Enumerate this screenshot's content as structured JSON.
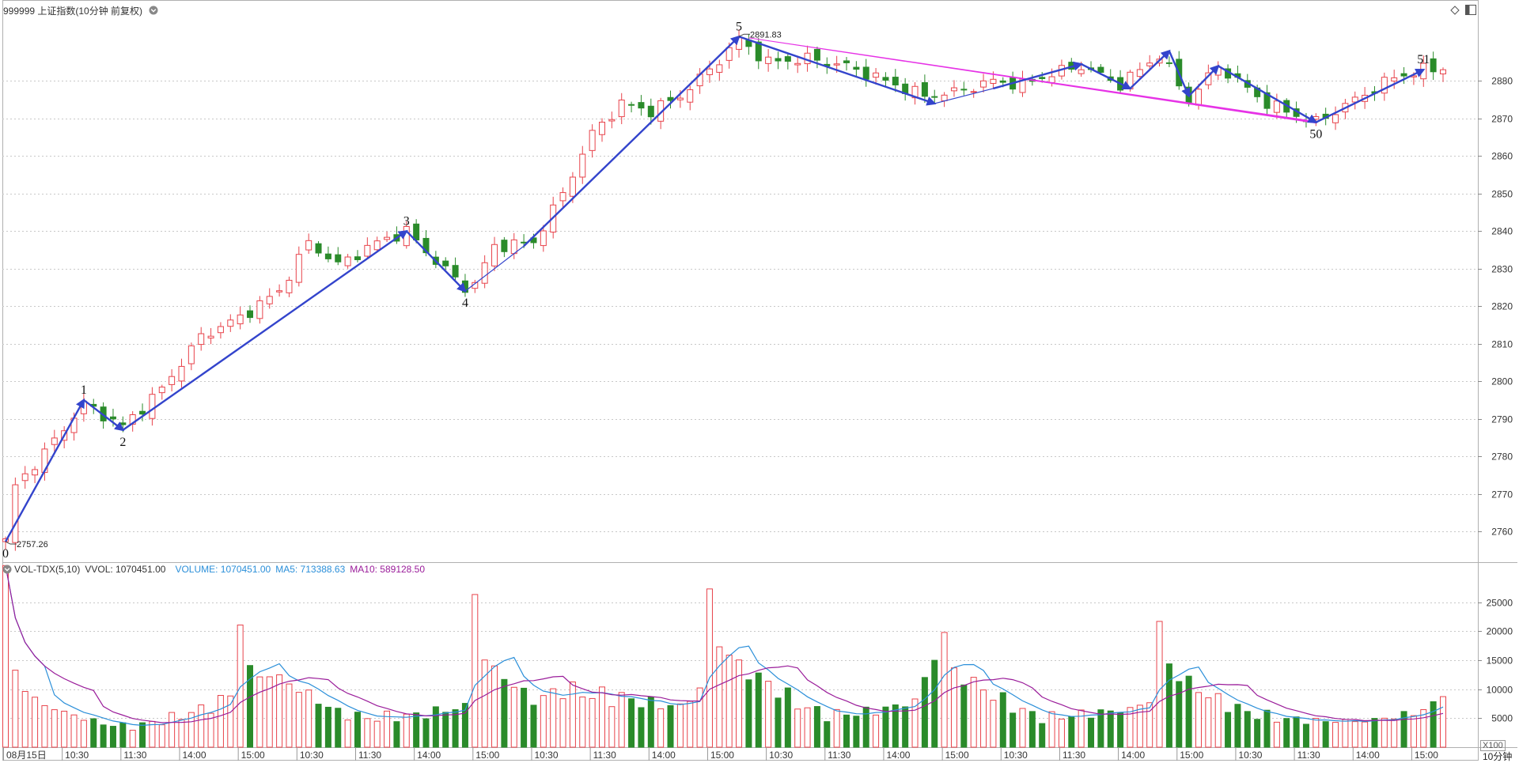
{
  "header": {
    "title": "999999 上证指数(10分钟 前复权)",
    "volume_panel": {
      "indicator": "VOL-TDX(5,10)",
      "vvol": "VVOL: 1070451.00",
      "volume": "VOLUME: 1070451.00",
      "ma5": "MA5: 713388.63",
      "ma10": "MA10: 589128.50"
    }
  },
  "period_label": "10分钟",
  "volume_unit_label": "X100",
  "colors": {
    "up": "#e8434b",
    "down": "#2a8b2a",
    "wave_line": "#3344cc",
    "trend_line": "#e632e6",
    "ma5": "#2b8fd9",
    "ma10": "#9a1c9a",
    "grid": "#c8c8c8"
  },
  "icons": {
    "title_menu": "chevron-down-circle-icon",
    "volume_menu": "chevron-down-circle-icon",
    "pin": "diamond-icon",
    "panel": "split-panel-icon"
  },
  "chart_data": {
    "type": "candlestick",
    "price_axis": {
      "ylim": [
        2752,
        2898
      ],
      "ticks": [
        2760,
        2770,
        2780,
        2790,
        2800,
        2810,
        2820,
        2830,
        2840,
        2850,
        2860,
        2870,
        2880
      ]
    },
    "volume_axis": {
      "ylim": [
        0,
        30000
      ],
      "ticks": [
        5000,
        10000,
        15000,
        20000,
        25000
      ]
    },
    "x_axis": {
      "bar_count": 148,
      "labels": [
        {
          "bar": 0,
          "text": "08月15日"
        },
        {
          "bar": 6,
          "text": "10:30"
        },
        {
          "bar": 12,
          "text": "11:30"
        },
        {
          "bar": 18,
          "text": "14:00"
        },
        {
          "bar": 24,
          "text": "15:00"
        },
        {
          "bar": 30,
          "text": "10:30"
        },
        {
          "bar": 36,
          "text": "11:30"
        },
        {
          "bar": 42,
          "text": "14:00"
        },
        {
          "bar": 48,
          "text": "15:00"
        },
        {
          "bar": 54,
          "text": "10:30"
        },
        {
          "bar": 60,
          "text": "11:30"
        },
        {
          "bar": 66,
          "text": "14:00"
        },
        {
          "bar": 72,
          "text": "15:00"
        },
        {
          "bar": 78,
          "text": "10:30"
        },
        {
          "bar": 84,
          "text": "11:30"
        },
        {
          "bar": 90,
          "text": "14:00"
        },
        {
          "bar": 96,
          "text": "15:00"
        },
        {
          "bar": 102,
          "text": "10:30"
        },
        {
          "bar": 108,
          "text": "11:30"
        },
        {
          "bar": 114,
          "text": "14:00"
        },
        {
          "bar": 120,
          "text": "15:00"
        },
        {
          "bar": 126,
          "text": "10:30"
        },
        {
          "bar": 132,
          "text": "11:30"
        },
        {
          "bar": 138,
          "text": "14:00"
        },
        {
          "bar": 144,
          "text": "15:00"
        }
      ]
    },
    "price_anchors": [
      [
        0,
        2758
      ],
      [
        1,
        2772
      ],
      [
        4,
        2781
      ],
      [
        8,
        2794
      ],
      [
        12,
        2788
      ],
      [
        16,
        2798
      ],
      [
        20,
        2812
      ],
      [
        24,
        2817
      ],
      [
        28,
        2824
      ],
      [
        31,
        2837
      ],
      [
        34,
        2831
      ],
      [
        38,
        2837
      ],
      [
        41,
        2840
      ],
      [
        44,
        2832
      ],
      [
        47,
        2825
      ],
      [
        48,
        2826
      ],
      [
        50,
        2836
      ],
      [
        54,
        2837
      ],
      [
        57,
        2850
      ],
      [
        60,
        2866
      ],
      [
        63,
        2874
      ],
      [
        66,
        2872
      ],
      [
        69,
        2876
      ],
      [
        72,
        2883
      ],
      [
        75,
        2891
      ],
      [
        78,
        2885
      ],
      [
        82,
        2886
      ],
      [
        86,
        2884
      ],
      [
        90,
        2880
      ],
      [
        94,
        2876
      ],
      [
        97,
        2877
      ],
      [
        101,
        2880
      ],
      [
        104,
        2879
      ],
      [
        107,
        2882
      ],
      [
        110,
        2884
      ],
      [
        114,
        2879
      ],
      [
        118,
        2887
      ],
      [
        121,
        2875
      ],
      [
        124,
        2884
      ],
      [
        129,
        2874
      ],
      [
        134,
        2869
      ],
      [
        138,
        2875
      ],
      [
        142,
        2881
      ],
      [
        145,
        2883
      ],
      [
        147,
        2883
      ]
    ],
    "volume_anchors": [
      [
        0,
        29000
      ],
      [
        1,
        13000
      ],
      [
        3,
        8000
      ],
      [
        6,
        6000
      ],
      [
        10,
        4000
      ],
      [
        13,
        3500
      ],
      [
        17,
        5000
      ],
      [
        21,
        7000
      ],
      [
        23,
        9000
      ],
      [
        24,
        22500
      ],
      [
        25,
        13000
      ],
      [
        28,
        12000
      ],
      [
        31,
        9000
      ],
      [
        34,
        6000
      ],
      [
        37,
        5000
      ],
      [
        42,
        5500
      ],
      [
        47,
        7000
      ],
      [
        48,
        28000
      ],
      [
        49,
        15000
      ],
      [
        51,
        12000
      ],
      [
        54,
        8000
      ],
      [
        57,
        10000
      ],
      [
        60,
        9000
      ],
      [
        63,
        8500
      ],
      [
        66,
        7500
      ],
      [
        69,
        7000
      ],
      [
        71,
        10000
      ],
      [
        72,
        26500
      ],
      [
        73,
        18000
      ],
      [
        75,
        14000
      ],
      [
        78,
        11000
      ],
      [
        81,
        7500
      ],
      [
        84,
        5500
      ],
      [
        88,
        6000
      ],
      [
        91,
        7000
      ],
      [
        93,
        8000
      ],
      [
        96,
        19500
      ],
      [
        97,
        13000
      ],
      [
        100,
        10000
      ],
      [
        103,
        7000
      ],
      [
        106,
        5000
      ],
      [
        109,
        5500
      ],
      [
        112,
        6000
      ],
      [
        115,
        6500
      ],
      [
        117,
        8000
      ],
      [
        118,
        21000
      ],
      [
        119,
        14000
      ],
      [
        121,
        11000
      ],
      [
        124,
        8000
      ],
      [
        127,
        6000
      ],
      [
        130,
        5000
      ],
      [
        134,
        4500
      ],
      [
        139,
        4500
      ],
      [
        143,
        5500
      ],
      [
        146,
        7000
      ],
      [
        147,
        10700
      ]
    ],
    "markers": [
      {
        "bar": 0,
        "price": 2757.26,
        "label": "0",
        "position": "below"
      },
      {
        "bar": 8,
        "price": 2795,
        "label": "1",
        "position": "above"
      },
      {
        "bar": 12,
        "price": 2787,
        "label": "2",
        "position": "below"
      },
      {
        "bar": 41,
        "price": 2840,
        "label": "3",
        "position": "above"
      },
      {
        "bar": 47,
        "price": 2824,
        "label": "4",
        "position": "below"
      },
      {
        "bar": 75,
        "price": 2891.83,
        "label": "5",
        "position": "above"
      },
      {
        "bar": 134,
        "price": 2869,
        "label": "50",
        "position": "below"
      },
      {
        "bar": 145,
        "price": 2883,
        "label": "51",
        "position": "above"
      }
    ],
    "extreme_labels": [
      {
        "bar": 0,
        "price": 2757.26,
        "text": "2757.26"
      },
      {
        "bar": 75,
        "price": 2891.83,
        "text": "2891.83"
      }
    ],
    "wave_lines": [
      {
        "points": [
          [
            0,
            2757.26
          ],
          [
            8,
            2795
          ]
        ],
        "thick": true
      },
      {
        "points": [
          [
            8,
            2795
          ],
          [
            12,
            2787
          ]
        ],
        "thick": true
      },
      {
        "points": [
          [
            12,
            2787
          ],
          [
            41,
            2840
          ]
        ],
        "thick": true
      },
      {
        "points": [
          [
            41,
            2840
          ],
          [
            47,
            2824
          ]
        ],
        "thick": true
      },
      {
        "points": [
          [
            47,
            2824
          ],
          [
            53,
            2836
          ]
        ],
        "thick": false
      },
      {
        "points": [
          [
            53,
            2836
          ],
          [
            75,
            2891.83
          ]
        ],
        "thick": true
      },
      {
        "points": [
          [
            75,
            2891.83
          ],
          [
            95,
            2874
          ]
        ],
        "thick": true
      },
      {
        "points": [
          [
            95,
            2874
          ],
          [
            101,
            2878
          ]
        ],
        "thick": false
      },
      {
        "points": [
          [
            101,
            2878
          ],
          [
            110,
            2884.5
          ]
        ],
        "thick": true
      },
      {
        "points": [
          [
            110,
            2884.5
          ],
          [
            115,
            2878
          ]
        ],
        "thick": true
      },
      {
        "points": [
          [
            115,
            2878
          ],
          [
            119,
            2888
          ]
        ],
        "thick": true
      },
      {
        "points": [
          [
            119,
            2888
          ],
          [
            121,
            2876
          ]
        ],
        "thick": true
      },
      {
        "points": [
          [
            121,
            2876
          ],
          [
            124,
            2884
          ]
        ],
        "thick": true
      },
      {
        "points": [
          [
            124,
            2884
          ],
          [
            134,
            2869
          ]
        ],
        "thick": true
      },
      {
        "points": [
          [
            134,
            2869
          ],
          [
            145,
            2883
          ]
        ],
        "thick": true
      }
    ],
    "trend_lines": [
      {
        "points": [
          [
            76,
            2891.5
          ],
          [
            134,
            2869
          ]
        ],
        "color": "#e632e6",
        "widths": [
          1,
          3
        ]
      }
    ]
  }
}
